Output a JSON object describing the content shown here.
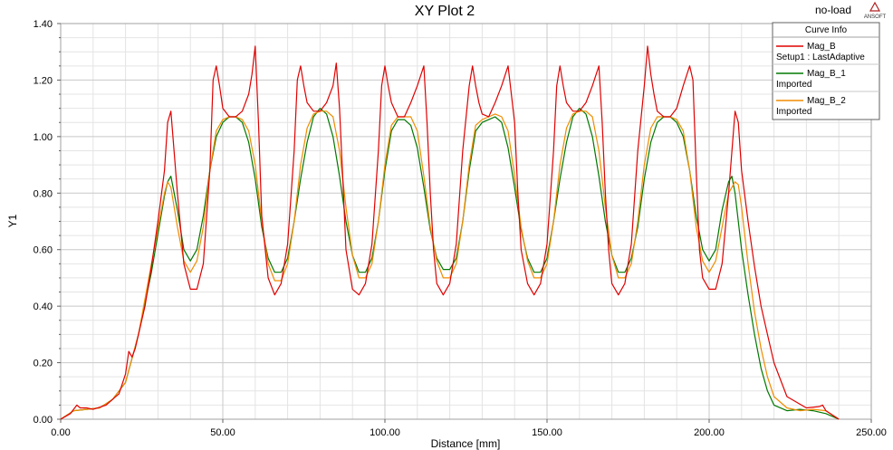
{
  "chart_data": {
    "type": "line",
    "title": "XY Plot 2",
    "annotation": "no-load",
    "brand": "ANSOFT",
    "xlabel": "Distance [mm]",
    "ylabel": "Y1",
    "xlim": [
      0,
      250
    ],
    "ylim": [
      0,
      1.4
    ],
    "x_ticks": [
      "0.00",
      "50.00",
      "100.00",
      "150.00",
      "200.00",
      "250.00"
    ],
    "y_ticks": [
      "0.00",
      "0.20",
      "0.40",
      "0.60",
      "0.80",
      "1.00",
      "1.20",
      "1.40"
    ],
    "grid": true,
    "legend": {
      "title": "Curve Info",
      "position": "top-right",
      "entries": [
        {
          "name": "Mag_B",
          "subtitle": "Setup1 : LastAdaptive",
          "color": "#e00000"
        },
        {
          "name": "Mag_B_1",
          "subtitle": "Imported",
          "color": "#007800"
        },
        {
          "name": "Mag_B_2",
          "subtitle": "Imported",
          "color": "#f08c00"
        }
      ]
    },
    "series": [
      {
        "name": "Mag_B",
        "color": "#e00000",
        "x": [
          0,
          3,
          5,
          6,
          8,
          10,
          14,
          18,
          20,
          21,
          22,
          23,
          24,
          26,
          28,
          30,
          32,
          33,
          34,
          36,
          38,
          40,
          42,
          44,
          46,
          47,
          48,
          49,
          50,
          52,
          54,
          56,
          58,
          59,
          60,
          61,
          62,
          64,
          66,
          68,
          70,
          72,
          73,
          74,
          75,
          76,
          78,
          80,
          82,
          84,
          85,
          86,
          87,
          88,
          90,
          92,
          94,
          96,
          98,
          99,
          100,
          101,
          102,
          104,
          106,
          108,
          110,
          112,
          113,
          114,
          115,
          116,
          118,
          120,
          122,
          124,
          126,
          127,
          128,
          129,
          130,
          132,
          134,
          136,
          138,
          140,
          141,
          142,
          144,
          146,
          148,
          150,
          152,
          153,
          154,
          155,
          156,
          158,
          160,
          162,
          164,
          166,
          167,
          168,
          169,
          170,
          172,
          174,
          176,
          178,
          180,
          181,
          182,
          183,
          184,
          186,
          188,
          190,
          192,
          194,
          195,
          196,
          197,
          198,
          200,
          202,
          204,
          206,
          208,
          209,
          210,
          212,
          214,
          216,
          218,
          220,
          224,
          230,
          234,
          235,
          236,
          240
        ],
        "values": [
          0,
          0.02,
          0.05,
          0.04,
          0.04,
          0.035,
          0.05,
          0.09,
          0.16,
          0.24,
          0.22,
          0.25,
          0.3,
          0.4,
          0.54,
          0.7,
          0.88,
          1.05,
          1.09,
          0.8,
          0.55,
          0.46,
          0.46,
          0.55,
          0.88,
          1.2,
          1.25,
          1.18,
          1.1,
          1.07,
          1.07,
          1.09,
          1.15,
          1.22,
          1.32,
          1.05,
          0.72,
          0.5,
          0.44,
          0.48,
          0.62,
          0.95,
          1.2,
          1.25,
          1.18,
          1.12,
          1.09,
          1.09,
          1.12,
          1.18,
          1.26,
          1.1,
          0.85,
          0.6,
          0.46,
          0.44,
          0.48,
          0.62,
          0.95,
          1.18,
          1.25,
          1.18,
          1.12,
          1.07,
          1.07,
          1.12,
          1.18,
          1.25,
          1.05,
          0.8,
          0.6,
          0.48,
          0.44,
          0.48,
          0.62,
          0.95,
          1.18,
          1.25,
          1.18,
          1.12,
          1.08,
          1.07,
          1.12,
          1.18,
          1.25,
          1.05,
          0.8,
          0.6,
          0.48,
          0.44,
          0.48,
          0.62,
          0.95,
          1.18,
          1.25,
          1.18,
          1.12,
          1.09,
          1.09,
          1.12,
          1.18,
          1.25,
          1.05,
          0.8,
          0.6,
          0.48,
          0.44,
          0.48,
          0.62,
          0.95,
          1.18,
          1.32,
          1.22,
          1.15,
          1.09,
          1.07,
          1.07,
          1.1,
          1.18,
          1.25,
          1.2,
          0.88,
          0.6,
          0.5,
          0.46,
          0.46,
          0.55,
          0.8,
          1.09,
          1.05,
          0.88,
          0.7,
          0.54,
          0.4,
          0.3,
          0.2,
          0.08,
          0.04,
          0.045,
          0.05,
          0.03,
          0
        ]
      },
      {
        "name": "Mag_B_1",
        "color": "#007800",
        "x": [
          0,
          4,
          8,
          12,
          16,
          20,
          24,
          28,
          32,
          33,
          34,
          36,
          38,
          40,
          42,
          44,
          46,
          48,
          50,
          52,
          54,
          56,
          58,
          60,
          62,
          64,
          66,
          68,
          70,
          72,
          74,
          76,
          78,
          80,
          82,
          84,
          86,
          88,
          90,
          92,
          94,
          96,
          98,
          100,
          102,
          104,
          106,
          108,
          110,
          112,
          114,
          116,
          118,
          120,
          122,
          124,
          126,
          128,
          130,
          132,
          134,
          136,
          138,
          140,
          142,
          144,
          146,
          148,
          150,
          152,
          154,
          156,
          158,
          160,
          162,
          164,
          166,
          168,
          170,
          172,
          174,
          176,
          178,
          180,
          182,
          184,
          186,
          188,
          190,
          192,
          194,
          196,
          198,
          200,
          202,
          204,
          206,
          207,
          208,
          210,
          212,
          214,
          216,
          218,
          220,
          224,
          228,
          232,
          236,
          240
        ],
        "values": [
          0,
          0.03,
          0.035,
          0.04,
          0.07,
          0.13,
          0.3,
          0.52,
          0.79,
          0.84,
          0.86,
          0.74,
          0.6,
          0.56,
          0.6,
          0.72,
          0.88,
          1.0,
          1.05,
          1.07,
          1.07,
          1.05,
          0.98,
          0.85,
          0.68,
          0.57,
          0.52,
          0.52,
          0.57,
          0.7,
          0.85,
          0.98,
          1.07,
          1.1,
          1.08,
          1.0,
          0.86,
          0.7,
          0.58,
          0.52,
          0.52,
          0.57,
          0.7,
          0.88,
          1.02,
          1.06,
          1.06,
          1.04,
          0.96,
          0.82,
          0.67,
          0.57,
          0.53,
          0.53,
          0.57,
          0.7,
          0.88,
          1.02,
          1.05,
          1.06,
          1.07,
          1.05,
          0.96,
          0.82,
          0.67,
          0.57,
          0.52,
          0.52,
          0.57,
          0.7,
          0.85,
          0.98,
          1.07,
          1.1,
          1.08,
          1.0,
          0.86,
          0.7,
          0.58,
          0.52,
          0.52,
          0.57,
          0.68,
          0.85,
          0.98,
          1.05,
          1.07,
          1.07,
          1.05,
          1.0,
          0.88,
          0.72,
          0.6,
          0.56,
          0.6,
          0.74,
          0.84,
          0.86,
          0.8,
          0.6,
          0.44,
          0.3,
          0.18,
          0.1,
          0.05,
          0.03,
          0.035,
          0.03,
          0.02,
          0
        ]
      },
      {
        "name": "Mag_B_2",
        "color": "#f08c00",
        "x": [
          0,
          4,
          8,
          12,
          16,
          20,
          24,
          28,
          32,
          33,
          34,
          36,
          38,
          40,
          42,
          44,
          46,
          48,
          50,
          52,
          54,
          56,
          58,
          60,
          62,
          64,
          66,
          68,
          70,
          72,
          74,
          76,
          78,
          80,
          82,
          84,
          86,
          88,
          90,
          92,
          94,
          96,
          98,
          100,
          102,
          104,
          106,
          108,
          110,
          112,
          114,
          116,
          118,
          120,
          122,
          124,
          126,
          128,
          130,
          132,
          134,
          136,
          138,
          140,
          142,
          144,
          146,
          148,
          150,
          152,
          154,
          156,
          158,
          160,
          162,
          164,
          166,
          168,
          170,
          172,
          174,
          176,
          178,
          180,
          182,
          184,
          186,
          188,
          190,
          192,
          194,
          196,
          198,
          200,
          202,
          204,
          206,
          208,
          209,
          210,
          212,
          214,
          216,
          218,
          220,
          224,
          228,
          232,
          236,
          240
        ],
        "values": [
          0,
          0.03,
          0.035,
          0.04,
          0.07,
          0.13,
          0.3,
          0.55,
          0.8,
          0.84,
          0.82,
          0.68,
          0.56,
          0.52,
          0.56,
          0.68,
          0.88,
          1.02,
          1.06,
          1.07,
          1.07,
          1.06,
          1.02,
          0.9,
          0.7,
          0.55,
          0.49,
          0.49,
          0.55,
          0.7,
          0.9,
          1.03,
          1.08,
          1.09,
          1.09,
          1.07,
          0.95,
          0.75,
          0.58,
          0.5,
          0.5,
          0.55,
          0.7,
          0.9,
          1.04,
          1.07,
          1.07,
          1.07,
          1.02,
          0.86,
          0.68,
          0.56,
          0.5,
          0.5,
          0.55,
          0.7,
          0.9,
          1.04,
          1.06,
          1.07,
          1.08,
          1.07,
          1.02,
          0.86,
          0.68,
          0.56,
          0.5,
          0.5,
          0.55,
          0.7,
          0.9,
          1.03,
          1.08,
          1.09,
          1.09,
          1.07,
          0.95,
          0.75,
          0.58,
          0.5,
          0.5,
          0.55,
          0.7,
          0.9,
          1.03,
          1.07,
          1.07,
          1.07,
          1.06,
          1.02,
          0.88,
          0.68,
          0.56,
          0.52,
          0.56,
          0.68,
          0.8,
          0.84,
          0.83,
          0.75,
          0.55,
          0.38,
          0.25,
          0.15,
          0.08,
          0.04,
          0.03,
          0.035,
          0.03,
          0
        ]
      }
    ]
  }
}
